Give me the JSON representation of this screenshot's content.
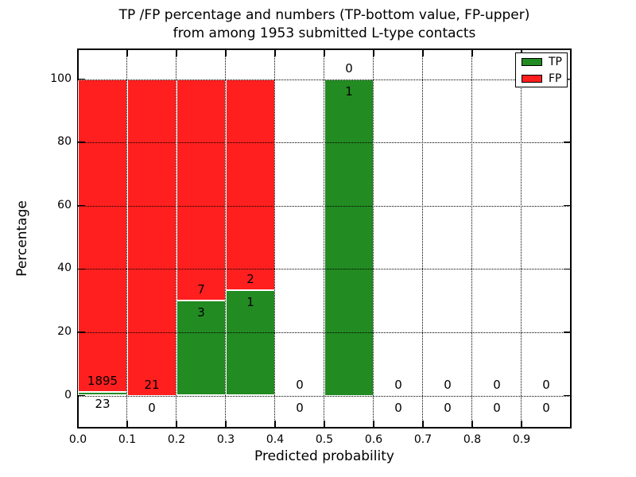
{
  "chart_data": {
    "type": "bar",
    "stacked": true,
    "title_line1": "TP /FP percentage and numbers (TP-bottom value, FP-upper)",
    "title_line2": "from among 1953 submitted L-type contacts",
    "xlabel": "Predicted probability",
    "ylabel": "Percentage",
    "total_submitted_contacts": 1953,
    "contact_type": "L-type",
    "xlim": [
      0.0,
      1.0
    ],
    "ylim": [
      -10,
      110
    ],
    "xticks": [
      "0.0",
      "0.1",
      "0.2",
      "0.3",
      "0.4",
      "0.5",
      "0.6",
      "0.7",
      "0.8",
      "0.9"
    ],
    "yticks": [
      "0",
      "20",
      "40",
      "60",
      "80",
      "100"
    ],
    "grid": "dotted",
    "legend_position": "upper right",
    "legend": [
      {
        "label": "TP",
        "color": "#228B22"
      },
      {
        "label": "FP",
        "color": "#FF1F1F"
      }
    ],
    "bin_width": 0.1,
    "bins": [
      {
        "x_start": 0.0,
        "x_end": 0.1,
        "tp_count": 23,
        "fp_count": 1895,
        "tp_pct": 1.2,
        "fp_pct": 98.8
      },
      {
        "x_start": 0.1,
        "x_end": 0.2,
        "tp_count": 0,
        "fp_count": 21,
        "tp_pct": 0,
        "fp_pct": 100
      },
      {
        "x_start": 0.2,
        "x_end": 0.3,
        "tp_count": 3,
        "fp_count": 7,
        "tp_pct": 30,
        "fp_pct": 70
      },
      {
        "x_start": 0.3,
        "x_end": 0.4,
        "tp_count": 1,
        "fp_count": 2,
        "tp_pct": 33.3,
        "fp_pct": 66.7
      },
      {
        "x_start": 0.4,
        "x_end": 0.5,
        "tp_count": 0,
        "fp_count": 0,
        "tp_pct": 0,
        "fp_pct": 0
      },
      {
        "x_start": 0.5,
        "x_end": 0.6,
        "tp_count": 1,
        "fp_count": 0,
        "tp_pct": 100,
        "fp_pct": 0
      },
      {
        "x_start": 0.6,
        "x_end": 0.7,
        "tp_count": 0,
        "fp_count": 0,
        "tp_pct": 0,
        "fp_pct": 0
      },
      {
        "x_start": 0.7,
        "x_end": 0.8,
        "tp_count": 0,
        "fp_count": 0,
        "tp_pct": 0,
        "fp_pct": 0
      },
      {
        "x_start": 0.8,
        "x_end": 0.9,
        "tp_count": 0,
        "fp_count": 0,
        "tp_pct": 0,
        "fp_pct": 0
      },
      {
        "x_start": 0.9,
        "x_end": 1.0,
        "tp_count": 0,
        "fp_count": 0,
        "tp_pct": 0,
        "fp_pct": 0
      }
    ]
  }
}
